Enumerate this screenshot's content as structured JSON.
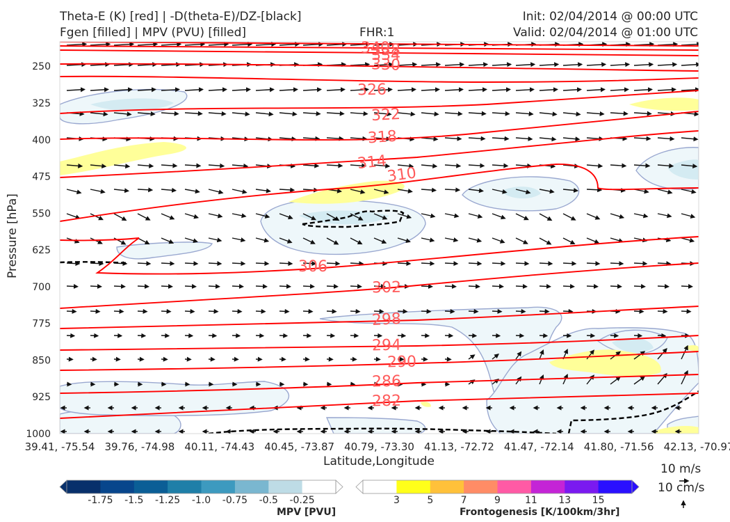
{
  "header": {
    "title_left_1": "Theta-E (K) [red] | -D(theta-E)/DZ-[black]",
    "title_left_2": "Fgen [filled] | MPV (PVU) [filled]",
    "fhr": "FHR:1",
    "init": "Init: 02/04/2014 @ 00:00 UTC",
    "valid": "Valid: 02/04/2014 @ 01:00 UTC"
  },
  "chart_data": {
    "type": "cross-section",
    "xlabel": "Latitude,Longitude",
    "ylabel": "Pressure [hPa]",
    "x_ticks": [
      "39.41, -75.54",
      "39.76, -74.98",
      "40.11, -74.43",
      "40.45, -73.87",
      "40.79, -73.30",
      "41.13, -72.72",
      "41.47, -72.14",
      "41.80, -71.56",
      "42.13, -70.97"
    ],
    "y_ticks": [
      250,
      325,
      400,
      475,
      550,
      625,
      700,
      775,
      850,
      925,
      1000
    ],
    "ylim": [
      1000,
      200
    ],
    "theta_e_contours": [
      {
        "value": 340,
        "label": "340"
      },
      {
        "value": 338,
        "label": "338"
      },
      {
        "value": 334,
        "label": "334"
      },
      {
        "value": 330,
        "label": "330"
      },
      {
        "value": 326,
        "label": "326"
      },
      {
        "value": 322,
        "label": "322"
      },
      {
        "value": 318,
        "label": "318"
      },
      {
        "value": 314,
        "label": "314"
      },
      {
        "value": 310,
        "label": "310"
      },
      {
        "value": 306,
        "label": "306"
      },
      {
        "value": 302,
        "label": "302"
      },
      {
        "value": 298,
        "label": "298"
      },
      {
        "value": 294,
        "label": "294"
      },
      {
        "value": 290,
        "label": "290"
      },
      {
        "value": 286,
        "label": "286"
      },
      {
        "value": 282,
        "label": "282"
      }
    ],
    "colors": {
      "theta_e": "#ff0000",
      "theta_e_label": "#ff5a5a",
      "mpv_contour": "#9aa8d0",
      "mpv_fill": "#eef7fa",
      "fgen_fill": "#ffff99",
      "stability": "#000000"
    }
  },
  "colorbars": {
    "mpv": {
      "label": "MPV [PVU]",
      "ticks": [
        "-1.75",
        "-1.5",
        "-1.25",
        "-1.0",
        "-0.75",
        "-0.5",
        "-0.25"
      ],
      "colors": [
        "#08306b",
        "#08468c",
        "#0b5e96",
        "#1f7fa8",
        "#3d9abf",
        "#7ab7d0",
        "#bedce6",
        "#ffffff"
      ]
    },
    "fgen": {
      "label": "Frontogenesis [K/100km/3hr]",
      "ticks": [
        "3",
        "5",
        "7",
        "9",
        "11",
        "13",
        "15"
      ],
      "colors": [
        "#ffffff",
        "#ffff1a",
        "#ffc13a",
        "#ff8c66",
        "#ff5aa5",
        "#c424d6",
        "#7a1af0",
        "#2a10ff"
      ]
    }
  },
  "wind_key": {
    "upper": "10 m/s",
    "lower": "10 cm/s"
  }
}
